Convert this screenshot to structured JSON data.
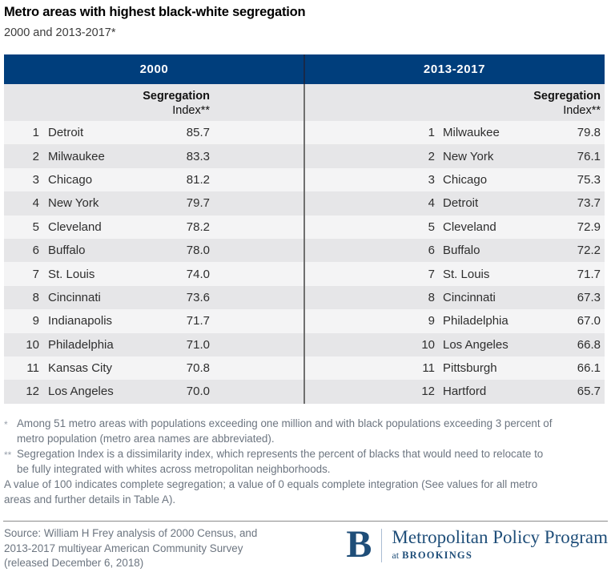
{
  "colors": {
    "header_navy": "#003e7c",
    "row_light": "#f4f4f5",
    "row_dark": "#e6e6e8",
    "divider_header": "#17294a",
    "divider_gray": "#6f6f6f",
    "text_gray": "#6c7580",
    "rule_gray": "#8b8b8b",
    "brookings_navy": "#1f4e79",
    "logo_sep": "#a9bdd3"
  },
  "chart_data": {
    "type": "table",
    "title": "Metro areas with highest black-white segregation",
    "subtitle": "2000 and 2013-2017*",
    "tables": [
      {
        "period": "2000",
        "value_header_line1": "Segregation",
        "value_header_line2": "Index**",
        "rows": [
          {
            "rank": "1",
            "metro": "Detroit",
            "value": "85.7"
          },
          {
            "rank": "2",
            "metro": "Milwaukee",
            "value": "83.3"
          },
          {
            "rank": "3",
            "metro": "Chicago",
            "value": "81.2"
          },
          {
            "rank": "4",
            "metro": "New York",
            "value": "79.7"
          },
          {
            "rank": "5",
            "metro": "Cleveland",
            "value": "78.2"
          },
          {
            "rank": "6",
            "metro": "Buffalo",
            "value": "78.0"
          },
          {
            "rank": "7",
            "metro": "St. Louis",
            "value": "74.0"
          },
          {
            "rank": "8",
            "metro": "Cincinnati",
            "value": "73.6"
          },
          {
            "rank": "9",
            "metro": "Indianapolis",
            "value": "71.7"
          },
          {
            "rank": "10",
            "metro": "Philadelphia",
            "value": "71.0"
          },
          {
            "rank": "11",
            "metro": "Kansas City",
            "value": "70.8"
          },
          {
            "rank": "12",
            "metro": "Los Angeles",
            "value": "70.0"
          }
        ]
      },
      {
        "period": "2013-2017",
        "value_header_line1": "Segregation",
        "value_header_line2": "Index**",
        "rows": [
          {
            "rank": "1",
            "metro": "Milwaukee",
            "value": "79.8"
          },
          {
            "rank": "2",
            "metro": "New York",
            "value": "76.1"
          },
          {
            "rank": "3",
            "metro": "Chicago",
            "value": "75.3"
          },
          {
            "rank": "4",
            "metro": "Detroit",
            "value": "73.7"
          },
          {
            "rank": "5",
            "metro": "Cleveland",
            "value": "72.9"
          },
          {
            "rank": "6",
            "metro": "Buffalo",
            "value": "72.2"
          },
          {
            "rank": "7",
            "metro": "St. Louis",
            "value": "71.7"
          },
          {
            "rank": "8",
            "metro": "Cincinnati",
            "value": "67.3"
          },
          {
            "rank": "9",
            "metro": "Philadelphia",
            "value": "67.0"
          },
          {
            "rank": "10",
            "metro": "Los Angeles",
            "value": "66.8"
          },
          {
            "rank": "11",
            "metro": "Pittsburgh",
            "value": "66.1"
          },
          {
            "rank": "12",
            "metro": "Hartford",
            "value": "65.7"
          }
        ]
      }
    ]
  },
  "footnotes": [
    {
      "marker": "*",
      "lines": [
        "Among 51 metro areas with populations exceeding one million and with black populations exceeding 3 percent of",
        "metro population (metro area names are abbreviated)."
      ]
    },
    {
      "marker": "**",
      "lines": [
        "Segregation Index is a dissimilarity index, which represents the percent of blacks that would need to relocate to",
        "be fully integrated with whites across metropolitan neighborhoods."
      ]
    },
    {
      "marker": "",
      "lines": [
        "A value of 100 indicates complete segregation; a value of 0 equals complete integration (See values for all metro",
        "areas and further details in Table A)."
      ]
    }
  ],
  "source": {
    "lines": [
      "Source: William H Frey analysis of 2000 Census, and",
      "2013-2017 multiyear American Community Survey",
      "(released December 6, 2018)"
    ]
  },
  "logo": {
    "initial": "B",
    "program": "Metropolitan Policy Program",
    "at_word": "at",
    "org": "BROOKINGS"
  }
}
